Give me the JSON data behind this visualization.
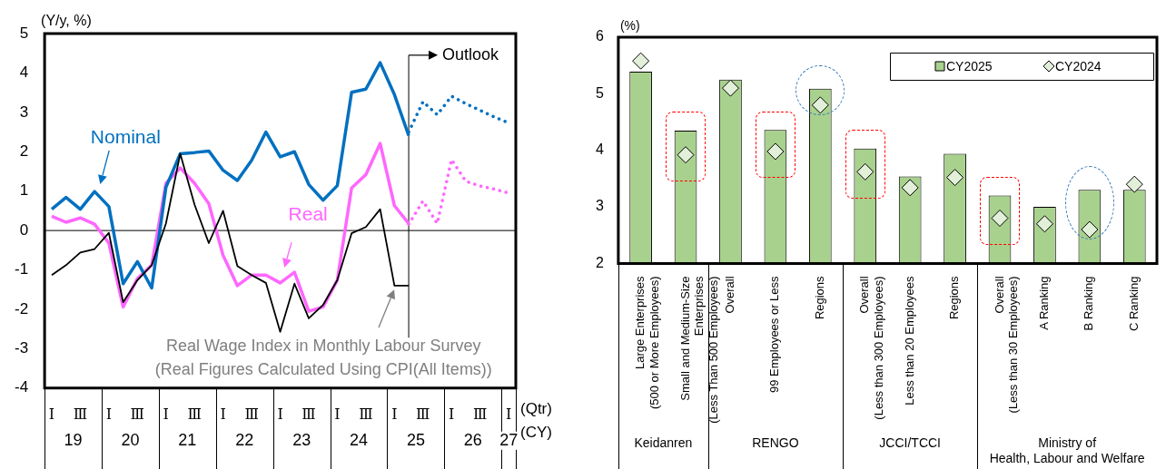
{
  "chart_data": [
    {
      "type": "line",
      "ylabel": "(Y/y, %)",
      "xlabel": "(Qtr)",
      "legend": false,
      "categories": [
        "Ⅰ",
        null,
        "Ⅲ",
        null,
        "Ⅰ",
        null,
        "Ⅲ",
        null,
        "Ⅰ",
        null,
        "Ⅲ",
        null,
        "Ⅰ",
        null,
        "Ⅲ",
        null,
        "Ⅰ",
        null,
        "Ⅲ",
        null,
        "Ⅰ",
        null,
        "Ⅲ",
        null,
        "Ⅰ",
        null,
        "Ⅲ",
        null,
        "Ⅰ",
        null,
        "Ⅲ",
        null,
        "Ⅰ"
      ],
      "ylim": [
        -4,
        5
      ],
      "yticks": [
        -4,
        -3,
        -2,
        -1,
        0,
        1,
        2,
        3,
        4,
        5
      ],
      "series": [
        {
          "name": "Nominal",
          "color": "#0070c0",
          "values": [
            0.54,
            0.84,
            0.54,
            0.99,
            0.61,
            -1.35,
            -0.79,
            -1.46,
            1.1,
            1.95,
            1.98,
            2.02,
            1.53,
            1.27,
            1.78,
            2.5,
            1.87,
            2.0,
            1.17,
            0.77,
            1.14,
            3.51,
            3.59,
            4.26,
            3.45,
            2.41,
            null,
            null,
            null,
            null,
            null,
            null,
            null
          ]
        },
        {
          "name": "Real",
          "color": "#ff66ff",
          "values": [
            0.36,
            0.21,
            0.32,
            0.16,
            -0.32,
            -1.94,
            -1.22,
            -0.88,
            1.2,
            1.59,
            1.2,
            0.68,
            -0.63,
            -1.4,
            -1.13,
            -1.13,
            -1.33,
            -1.06,
            -2.05,
            -1.94,
            -1.26,
            1.08,
            1.42,
            2.21,
            0.63,
            0.18,
            null,
            null,
            null,
            null,
            null,
            null,
            null
          ]
        },
        {
          "name": "Real Wage Index in Monthly Labour Survey\n(Real Figures Calculated Using CPI(All Items))",
          "color": "#000000",
          "values": [
            -1.13,
            -0.88,
            -0.56,
            -0.47,
            -0.06,
            -1.82,
            -1.26,
            -0.88,
            0.18,
            1.95,
            0.66,
            -0.32,
            0.5,
            -0.9,
            -1.13,
            -1.33,
            -2.57,
            -1.35,
            -2.23,
            -1.89,
            -1.26,
            -0.07,
            0.09,
            0.54,
            -1.4,
            -1.4,
            null,
            null,
            null,
            null,
            null,
            null,
            null
          ]
        },
        {
          "color": "#0070c0",
          "line_style": "dotted",
          "values": [
            null,
            null,
            null,
            null,
            null,
            null,
            null,
            null,
            null,
            null,
            null,
            null,
            null,
            null,
            null,
            null,
            null,
            null,
            null,
            null,
            null,
            null,
            null,
            null,
            null,
            2.5,
            3.27,
            2.94,
            3.41,
            3.22,
            3.05,
            2.88,
            2.73
          ]
        },
        {
          "color": "#ff66ff",
          "line_style": "dotted",
          "values": [
            null,
            null,
            null,
            null,
            null,
            null,
            null,
            null,
            null,
            null,
            null,
            null,
            null,
            null,
            null,
            null,
            null,
            null,
            null,
            null,
            null,
            null,
            null,
            null,
            null,
            0.16,
            0.75,
            0.18,
            1.8,
            1.25,
            1.13,
            1.05,
            0.95
          ]
        }
      ],
      "ref_lines": [
        {
          "axis": "y",
          "value": 0
        }
      ],
      "annotations": [
        "Outlook",
        "19",
        "20",
        "21",
        "22",
        "23",
        "24",
        "25",
        "26",
        "27",
        "(CY)"
      ]
    },
    {
      "type": "bar",
      "ylabel": "(%)",
      "legend": "top right",
      "grid": false,
      "categories": [
        "Large Enterprises\n(500 or More Employees)",
        "Small and Medium-Size\nEnterprises\n(Less Than 500 Employees)",
        "Overall",
        "99 Employees or Less",
        "Regions",
        "Overall\n(Less than 300 Employees)",
        "Less than 20 Employees",
        "Regions",
        "Overall\n(Less than 30 Employees)",
        "A Ranking",
        "B Ranking",
        "C Ranking"
      ],
      "ylim": [
        2,
        6
      ],
      "yticks": [
        2,
        3,
        4,
        5,
        6
      ],
      "series": [
        {
          "name": "CY2025",
          "color": "#a9d18e",
          "values": [
            5.39,
            4.35,
            5.25,
            4.36,
            5.09,
            4.03,
            3.54,
            3.94,
            3.2,
            3.0,
            3.3,
            3.3
          ]
        },
        {
          "name": "CY2024",
          "type": "scatter",
          "marker": "diamond",
          "color": "#e2efd9",
          "values": [
            5.58,
            3.92,
            5.1,
            3.98,
            4.8,
            3.62,
            3.34,
            3.52,
            2.8,
            2.7,
            2.6,
            3.4
          ]
        }
      ],
      "annotations": [
        "Keidanren",
        "RENGO",
        "JCCI/TCCI",
        "Ministry of\nHealth, Labour and Welfare"
      ]
    }
  ]
}
